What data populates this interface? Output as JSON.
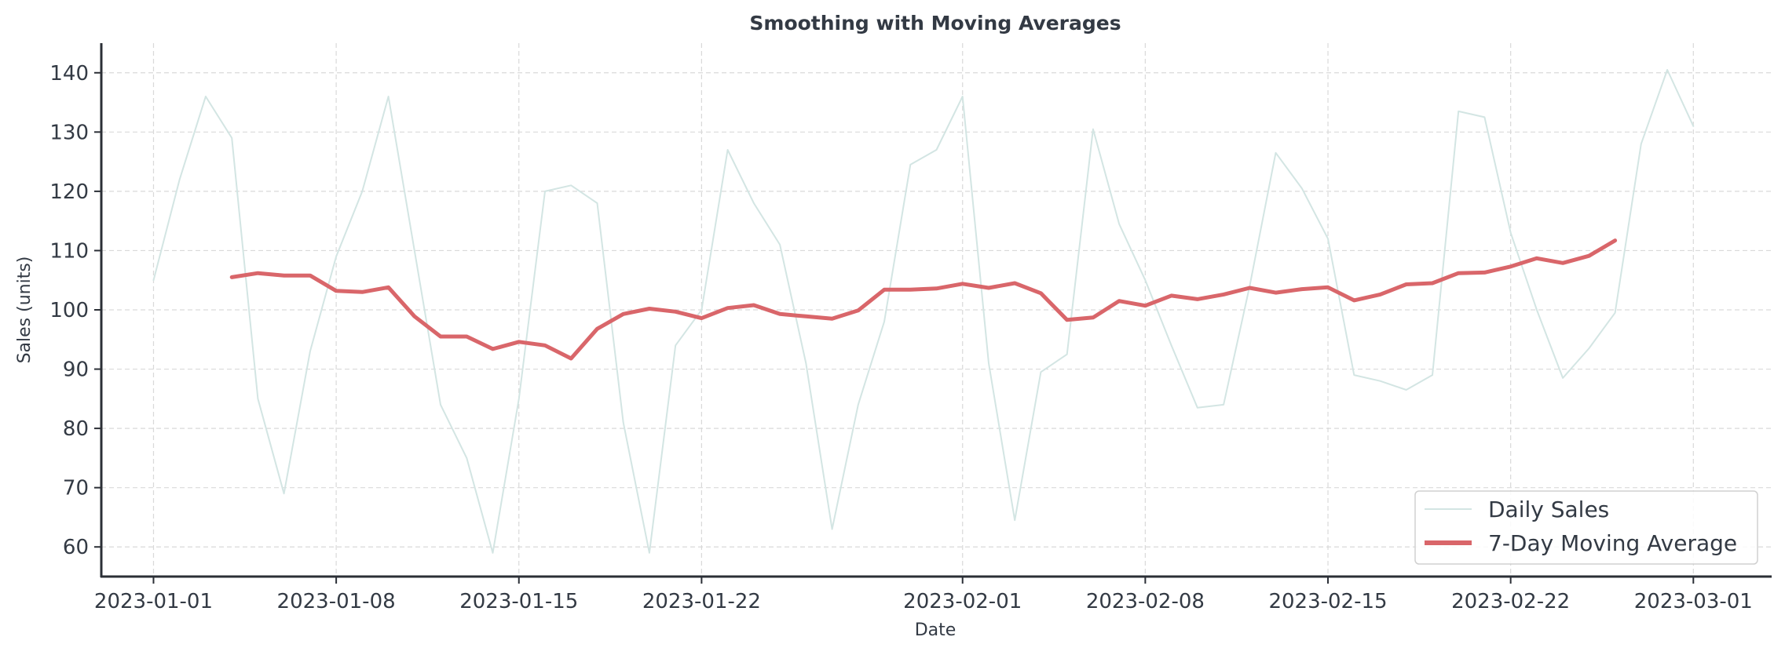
{
  "chart_data": {
    "type": "line",
    "title": "Smoothing with Moving Averages",
    "xlabel": "Date",
    "ylabel": "Sales (units)",
    "x_start": "2023-01-01",
    "x_end": "2023-03-01",
    "xlim": [
      "2022-12-30",
      "2023-03-04"
    ],
    "ylim": [
      55,
      145
    ],
    "xticks": [
      "2023-01-01",
      "2023-01-08",
      "2023-01-15",
      "2023-01-22",
      "2023-02-01",
      "2023-02-08",
      "2023-02-15",
      "2023-02-22",
      "2023-03-01"
    ],
    "yticks": [
      60,
      70,
      80,
      90,
      100,
      110,
      120,
      130,
      140
    ],
    "grid": true,
    "legend_position": "bottom-right",
    "series": [
      {
        "name": "Daily Sales",
        "color": "#d3e5e3",
        "start_date": "2023-01-01",
        "values": [
          105,
          122,
          136,
          129,
          85,
          69,
          93,
          109,
          120,
          136,
          110,
          84,
          75,
          59,
          85,
          120,
          121,
          118,
          81,
          59,
          94,
          100,
          127,
          118,
          111,
          91,
          63,
          84,
          98,
          124.5,
          127,
          136,
          91,
          64.5,
          89.5,
          92.5,
          130.5,
          114.5,
          105,
          94,
          83.5,
          84,
          104,
          126.5,
          120.5,
          112,
          89,
          88,
          86.5,
          89,
          133.5,
          132.5,
          113,
          100,
          88.5,
          93.5,
          99.5,
          128,
          140.5,
          131
        ]
      },
      {
        "name": "7-Day Moving Average",
        "color": "#d9666a",
        "start_date": "2023-01-04",
        "values": [
          105.5,
          106.2,
          105.8,
          105.8,
          103.2,
          103.0,
          103.8,
          98.9,
          95.5,
          95.5,
          93.4,
          94.6,
          94.0,
          91.8,
          96.8,
          99.3,
          100.2,
          99.7,
          98.6,
          100.3,
          100.8,
          99.3,
          98.9,
          98.5,
          99.9,
          103.4,
          103.4,
          103.6,
          104.4,
          103.7,
          104.5,
          102.8,
          98.3,
          98.7,
          101.5,
          100.7,
          102.4,
          101.8,
          102.6,
          103.7,
          102.9,
          103.5,
          103.8,
          101.6,
          102.6,
          104.3,
          104.5,
          106.2,
          106.3,
          107.3,
          108.7,
          107.9,
          109.1,
          111.7
        ]
      }
    ]
  }
}
